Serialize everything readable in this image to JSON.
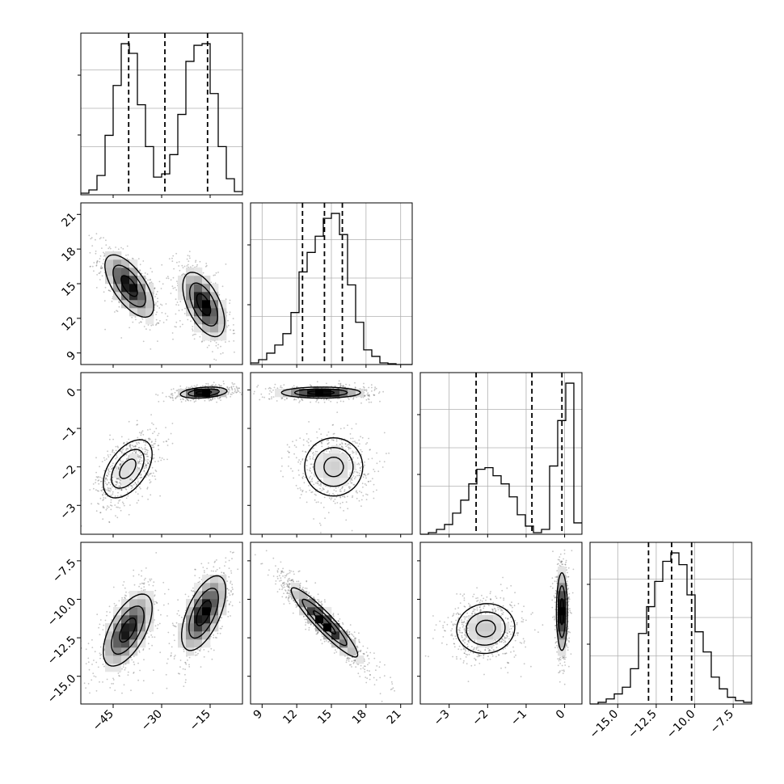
{
  "chart_data": {
    "type": "corner",
    "description_variables": 4,
    "axes": [
      {
        "lim": [
          -55,
          -5
        ],
        "ticks": [
          -45,
          -30,
          -15
        ],
        "tick_labels": [
          "−45",
          "−30",
          "−15"
        ]
      },
      {
        "lim": [
          8,
          22
        ],
        "ticks": [
          9,
          12,
          15,
          18,
          21
        ],
        "tick_labels": [
          "9",
          "12",
          "15",
          "18",
          "21"
        ]
      },
      {
        "lim": [
          -3.75,
          0.45
        ],
        "ticks": [
          -3,
          -2,
          -1,
          0
        ],
        "tick_labels": [
          "−3",
          "−2",
          "−1",
          "0"
        ]
      },
      {
        "lim": [
          -16.8,
          -6.3
        ],
        "ticks": [
          -15,
          -12.5,
          -10,
          -7.5
        ],
        "tick_labels": [
          "−15.0",
          "−12.5",
          "−10.0",
          "−7.5"
        ]
      }
    ],
    "histograms": [
      {
        "variable": 0,
        "quantiles": [
          -40.2,
          -29.0,
          -15.8
        ],
        "bin_edges": [
          -55,
          -52.5,
          -50,
          -47.5,
          -45,
          -42.5,
          -40,
          -37.5,
          -35,
          -32.5,
          -30,
          -27.5,
          -25,
          -22.5,
          -20,
          -17.5,
          -15,
          -12.5,
          -10,
          -7.5,
          -5
        ],
        "counts": [
          0.01,
          0.03,
          0.12,
          0.37,
          0.68,
          0.94,
          0.88,
          0.56,
          0.3,
          0.11,
          0.13,
          0.25,
          0.5,
          0.83,
          0.93,
          0.94,
          0.63,
          0.3,
          0.1,
          0.02
        ]
      },
      {
        "variable": 1,
        "quantiles": [
          12.5,
          14.4,
          15.95
        ],
        "bin_edges": [
          8,
          8.7,
          9.4,
          10.1,
          10.8,
          11.5,
          12.2,
          12.9,
          13.6,
          14.3,
          15.0,
          15.7,
          16.4,
          17.1,
          17.8,
          18.5,
          19.2,
          19.9,
          20.6,
          21.3,
          22
        ],
        "counts": [
          0.01,
          0.03,
          0.07,
          0.12,
          0.19,
          0.32,
          0.57,
          0.69,
          0.79,
          0.9,
          0.93,
          0.8,
          0.49,
          0.26,
          0.09,
          0.05,
          0.01,
          0.005,
          0.0,
          0.0
        ]
      },
      {
        "variable": 2,
        "quantiles": [
          -2.3,
          -0.85,
          -0.07
        ],
        "bin_edges": [
          -3.75,
          -3.54,
          -3.33,
          -3.12,
          -2.91,
          -2.7,
          -2.49,
          -2.28,
          -2.07,
          -1.86,
          -1.65,
          -1.44,
          -1.23,
          -1.02,
          -0.81,
          -0.6,
          -0.39,
          -0.18,
          0.03,
          0.24,
          0.45
        ],
        "counts": [
          0.0,
          0.01,
          0.03,
          0.06,
          0.13,
          0.21,
          0.31,
          0.4,
          0.41,
          0.36,
          0.31,
          0.23,
          0.12,
          0.05,
          0.01,
          0.03,
          0.42,
          0.7,
          0.93,
          0.07
        ]
      },
      {
        "variable": 3,
        "quantiles": [
          -13.0,
          -11.5,
          -10.2
        ],
        "bin_edges": [
          -16.8,
          -16.275,
          -15.75,
          -15.225,
          -14.7,
          -14.175,
          -13.65,
          -13.125,
          -12.6,
          -12.075,
          -11.55,
          -11.025,
          -10.5,
          -9.975,
          -9.45,
          -8.925,
          -8.4,
          -7.875,
          -7.35,
          -6.825,
          -6.3
        ],
        "counts": [
          0.0,
          0.01,
          0.03,
          0.06,
          0.1,
          0.21,
          0.42,
          0.58,
          0.73,
          0.85,
          0.9,
          0.83,
          0.65,
          0.43,
          0.31,
          0.16,
          0.09,
          0.04,
          0.02,
          0.01
        ]
      }
    ],
    "pairs": [
      {
        "x": 0,
        "y": 1,
        "clusters": [
          {
            "weight": 0.5,
            "mean": [
              -40,
              14.8
            ],
            "sd": [
              4.2,
              1.5
            ],
            "rho": -0.65
          },
          {
            "weight": 0.5,
            "mean": [
              -17,
              13.2
            ],
            "sd": [
              3.6,
              1.55
            ],
            "rho": -0.55
          }
        ]
      },
      {
        "x": 0,
        "y": 2,
        "clusters": [
          {
            "weight": 0.5,
            "mean": [
              -40.5,
              -2.05
            ],
            "sd": [
              4.2,
              0.42
            ],
            "rho": 0.5
          },
          {
            "weight": 0.5,
            "mean": [
              -17,
              -0.07
            ],
            "sd": [
              4.0,
              0.08
            ],
            "rho": 0.3
          }
        ]
      },
      {
        "x": 0,
        "y": 3,
        "clusters": [
          {
            "weight": 0.5,
            "mean": [
              -40.5,
              -12.0
            ],
            "sd": [
              4.2,
              1.3
            ],
            "rho": 0.6
          },
          {
            "weight": 0.5,
            "mean": [
              -17,
              -10.9
            ],
            "sd": [
              3.8,
              1.35
            ],
            "rho": 0.6
          }
        ]
      },
      {
        "x": 1,
        "y": 2,
        "clusters": [
          {
            "weight": 0.5,
            "mean": [
              14.1,
              -0.07
            ],
            "sd": [
              1.9,
              0.08
            ],
            "rho": 0.0
          },
          {
            "weight": 0.5,
            "mean": [
              15.2,
              -2.0
            ],
            "sd": [
              1.4,
              0.42
            ],
            "rho": 0.0
          }
        ]
      },
      {
        "x": 1,
        "y": 3,
        "clusters": [
          {
            "weight": 1.0,
            "mean": [
              14.4,
              -11.5
            ],
            "sd": [
              1.6,
              1.25
            ],
            "rho": -0.93
          }
        ]
      },
      {
        "x": 2,
        "y": 3,
        "clusters": [
          {
            "weight": 0.5,
            "mean": [
              -2.05,
              -11.9
            ],
            "sd": [
              0.42,
              0.9
            ],
            "rho": 0.05
          },
          {
            "weight": 0.5,
            "mean": [
              -0.07,
              -10.8
            ],
            "sd": [
              0.08,
              1.4
            ],
            "rho": 0.0
          }
        ]
      }
    ]
  }
}
